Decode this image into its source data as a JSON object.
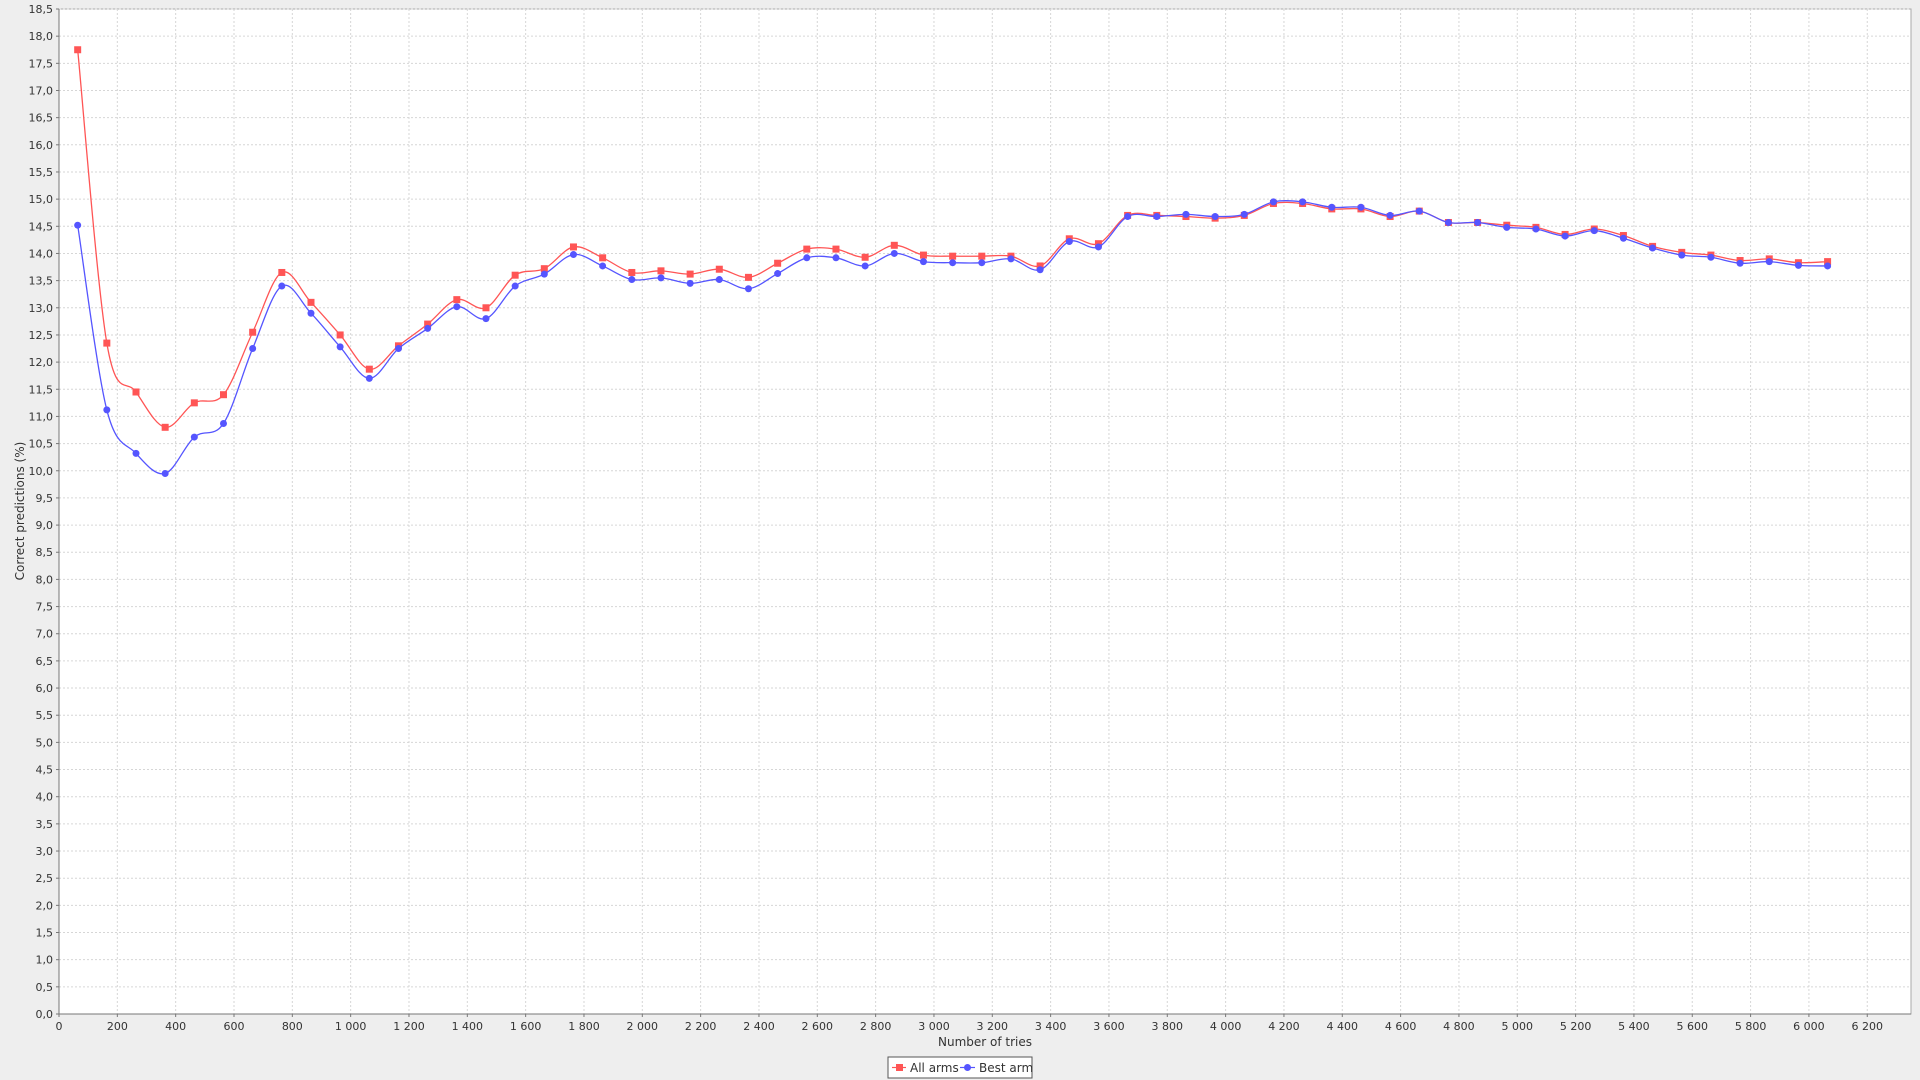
{
  "chart_data": {
    "type": "line",
    "title": "",
    "xlabel": "Number of tries",
    "ylabel": "Correct predictions (%)",
    "xlim": [
      0,
      6350
    ],
    "ylim": [
      0,
      18.5
    ],
    "grid": true,
    "legend_position": "bottom-center",
    "x_ticks": [
      "0",
      "200",
      "400",
      "600",
      "800",
      "1 000",
      "1 200",
      "1 400",
      "1 600",
      "1 800",
      "2 000",
      "2 200",
      "2 400",
      "2 600",
      "2 800",
      "3 000",
      "3 200",
      "3 400",
      "3 600",
      "3 800",
      "4 000",
      "4 200",
      "4 400",
      "4 600",
      "4 800",
      "5 000",
      "5 200",
      "5 400",
      "5 600",
      "5 800",
      "6 000",
      "6 200"
    ],
    "y_ticks": [
      "0,0",
      "0,5",
      "1,0",
      "1,5",
      "2,0",
      "2,5",
      "3,0",
      "3,5",
      "4,0",
      "4,5",
      "5,0",
      "5,5",
      "6,0",
      "6,5",
      "7,0",
      "7,5",
      "8,0",
      "8,5",
      "9,0",
      "9,5",
      "10,0",
      "10,5",
      "11,0",
      "11,5",
      "12,0",
      "12,5",
      "13,0",
      "13,5",
      "14,0",
      "14,5",
      "15,0",
      "15,5",
      "16,0",
      "16,5",
      "17,0",
      "17,5",
      "18,0",
      "18,5"
    ],
    "x": [
      64,
      164,
      264,
      364,
      464,
      564,
      664,
      764,
      864,
      964,
      1064,
      1164,
      1264,
      1364,
      1464,
      1564,
      1664,
      1764,
      1864,
      1964,
      2064,
      2164,
      2264,
      2364,
      2464,
      2564,
      2664,
      2764,
      2864,
      2964,
      3064,
      3164,
      3264,
      3364,
      3464,
      3564,
      3664,
      3764,
      3864,
      3964,
      4064,
      4164,
      4264,
      4364,
      4464,
      4564,
      4664,
      4764,
      4864,
      4964,
      5064,
      5164,
      5264,
      5364,
      5464,
      5564,
      5664,
      5764,
      5864,
      5964,
      6064
    ],
    "series": [
      {
        "name": "All arms",
        "color": "#ff5555",
        "marker": "square",
        "values": [
          17.75,
          12.35,
          11.45,
          10.8,
          11.25,
          11.4,
          12.55,
          13.65,
          13.1,
          12.5,
          11.87,
          12.3,
          12.7,
          13.15,
          13.0,
          13.6,
          13.72,
          14.12,
          13.92,
          13.65,
          13.68,
          13.62,
          13.71,
          13.56,
          13.82,
          14.08,
          14.08,
          13.93,
          14.15,
          13.97,
          13.95,
          13.95,
          13.95,
          13.77,
          14.27,
          14.18,
          14.7,
          14.7,
          14.68,
          14.65,
          14.7,
          14.92,
          14.92,
          14.82,
          14.82,
          14.68,
          14.78,
          14.57,
          14.57,
          14.52,
          14.48,
          14.35,
          14.45,
          14.33,
          14.13,
          14.02,
          13.97,
          13.87,
          13.9,
          13.83,
          13.85
        ]
      },
      {
        "name": "Best arm",
        "color": "#5555ff",
        "marker": "circle",
        "values": [
          14.52,
          11.12,
          10.32,
          9.95,
          10.62,
          10.87,
          12.25,
          13.4,
          12.9,
          12.28,
          11.7,
          12.25,
          12.62,
          13.02,
          12.8,
          13.4,
          13.62,
          13.98,
          13.77,
          13.52,
          13.55,
          13.45,
          13.52,
          13.35,
          13.63,
          13.92,
          13.92,
          13.77,
          14.0,
          13.85,
          13.83,
          13.83,
          13.9,
          13.7,
          14.22,
          14.12,
          14.68,
          14.68,
          14.72,
          14.68,
          14.72,
          14.95,
          14.95,
          14.85,
          14.85,
          14.7,
          14.78,
          14.57,
          14.57,
          14.48,
          14.45,
          14.32,
          14.42,
          14.28,
          14.1,
          13.97,
          13.93,
          13.82,
          13.85,
          13.78,
          13.77
        ]
      }
    ]
  }
}
